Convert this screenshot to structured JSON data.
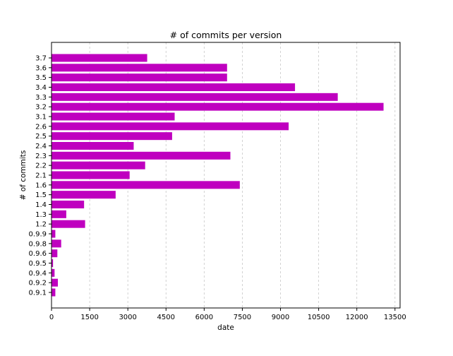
{
  "chart_data": {
    "type": "bar",
    "orientation": "horizontal",
    "title": "# of commits per version",
    "xlabel": "date",
    "ylabel": "# of commits",
    "xlim": [
      0,
      13700
    ],
    "x_ticks": [
      0,
      1500,
      3000,
      4500,
      6000,
      7500,
      9000,
      10500,
      12000,
      13500
    ],
    "grid": "x-dashed",
    "bar_color": "#bf00bf",
    "categories": [
      "0.9.1",
      "0.9.2",
      "0.9.4",
      "0.9.5",
      "0.9.6",
      "0.9.8",
      "0.9.9",
      "1.2",
      "1.3",
      "1.4",
      "1.5",
      "1.6",
      "2.1",
      "2.2",
      "2.3",
      "2.4",
      "2.5",
      "2.6",
      "3.1",
      "3.2",
      "3.3",
      "3.4",
      "3.5",
      "3.6",
      "3.7"
    ],
    "values": [
      150,
      250,
      120,
      60,
      230,
      380,
      150,
      1320,
      580,
      1280,
      2520,
      7400,
      3070,
      3680,
      7030,
      3230,
      4740,
      9320,
      4840,
      13050,
      11250,
      9570,
      6900,
      6900,
      3760
    ]
  }
}
